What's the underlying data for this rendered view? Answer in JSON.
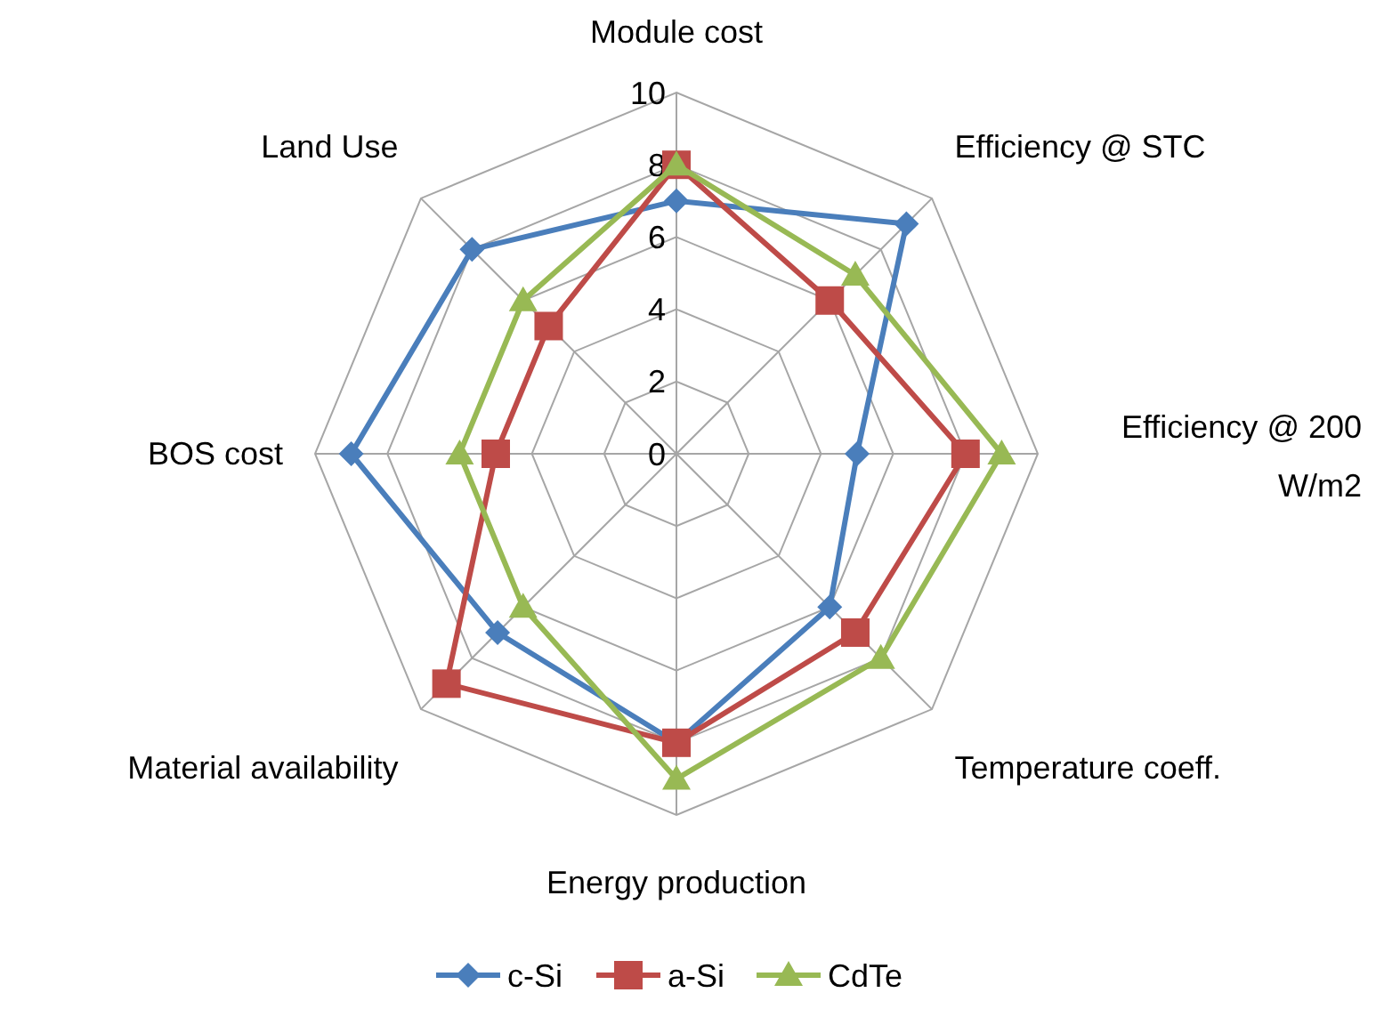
{
  "chart_data": {
    "type": "radar",
    "categories": [
      "Module cost",
      "Efficiency @ STC",
      "Efficiency @ 200 W/m2",
      "Temperature coeff.",
      "Energy production",
      "Material availability",
      "BOS cost",
      "Land Use"
    ],
    "ylim": [
      0,
      10
    ],
    "yticks": [
      0,
      2,
      4,
      6,
      8,
      10
    ],
    "grid": true,
    "legend": "bottom",
    "series": [
      {
        "name": "c-Si",
        "color": "#4a7ebb",
        "marker": "diamond",
        "values": [
          7,
          9,
          5,
          6,
          8,
          7,
          9,
          8
        ]
      },
      {
        "name": "a-Si",
        "color": "#be4b48",
        "marker": "square",
        "values": [
          8,
          6,
          8,
          7,
          8,
          9,
          5,
          5
        ]
      },
      {
        "name": "CdTe",
        "color": "#98b954",
        "marker": "triangle",
        "values": [
          8,
          7,
          9,
          8,
          9,
          6,
          6,
          6
        ]
      }
    ]
  }
}
